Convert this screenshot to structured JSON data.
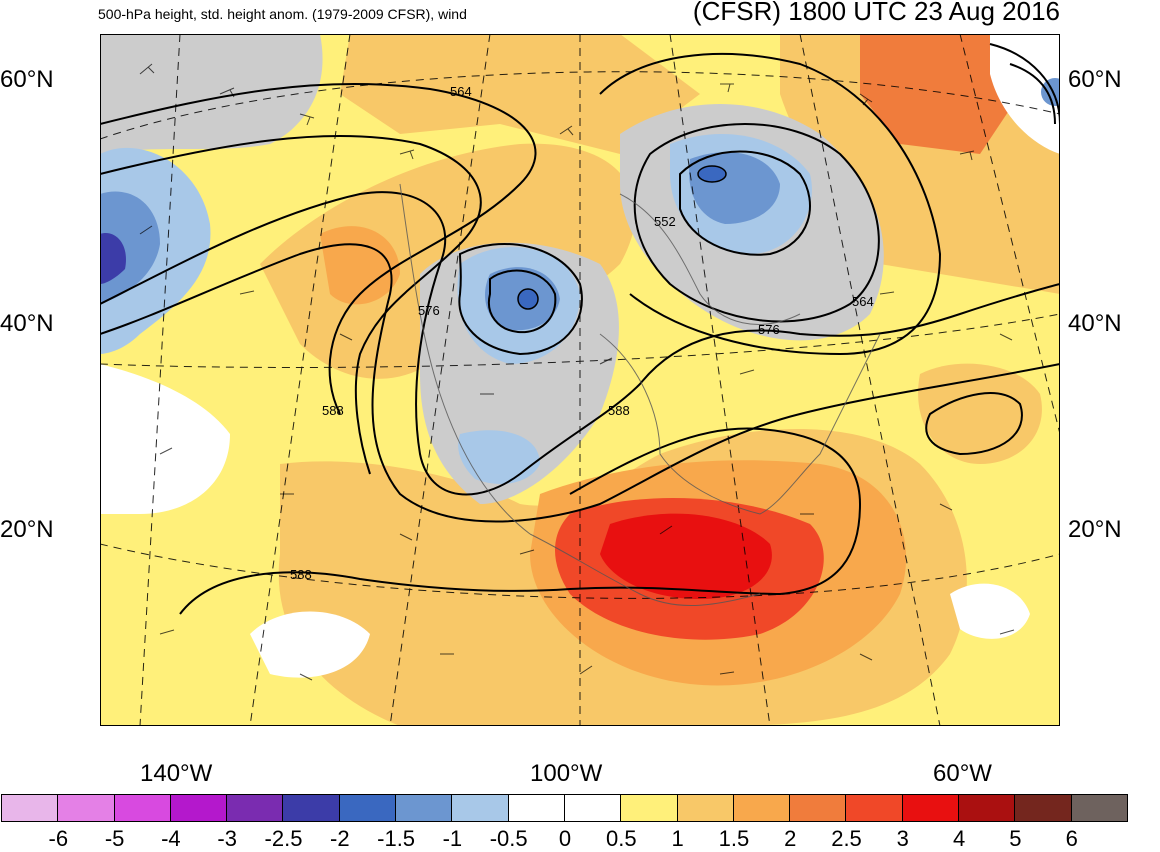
{
  "title_left": "500-hPa height, std. height anom. (1979-2009 CFSR), wind",
  "title_right": "(CFSR) 1800 UTC 23 Aug 2016",
  "lat_labels": [
    "60°N",
    "40°N",
    "20°N"
  ],
  "lon_labels": [
    "140°W",
    "100°W",
    "60°W"
  ],
  "contour_labels": [
    "564",
    "552",
    "576",
    "564",
    "576",
    "588",
    "588",
    "588"
  ],
  "colorbar": {
    "colors": [
      "#e8b6ea",
      "#e480e6",
      "#d84ae0",
      "#b418cc",
      "#7a2cb0",
      "#3c3ca8",
      "#3a68c0",
      "#6c96d0",
      "#a8c8e8",
      "#ffffff",
      "#ffffff",
      "#fff07a",
      "#f8c868",
      "#f8a84c",
      "#f07c3c",
      "#f04828",
      "#e81010",
      "#aa1010",
      "#74261e",
      "#6e625e"
    ],
    "labels": [
      "-6",
      "-5",
      "-4",
      "-3",
      "-2.5",
      "-2",
      "-1.5",
      "-1",
      "-0.5",
      "0",
      "0.5",
      "1",
      "1.5",
      "2",
      "2.5",
      "3",
      "4",
      "5",
      "6"
    ]
  },
  "colors": {
    "land_lowanom": "#cccccc",
    "contour": "#000000",
    "coast": "#555555"
  }
}
